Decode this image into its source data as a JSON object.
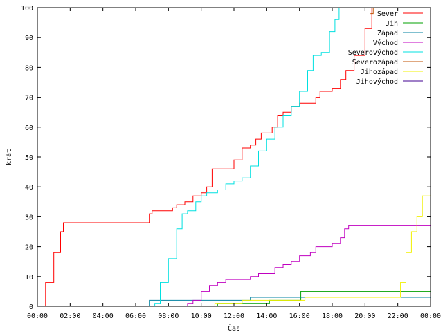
{
  "chart_data": {
    "type": "line",
    "xlabel": "Čas",
    "ylabel": "krát",
    "xlim": [
      "00:00",
      "24:00"
    ],
    "ylim": [
      0,
      100
    ],
    "x_ticks": [
      "00:00",
      "02:00",
      "04:00",
      "06:00",
      "08:00",
      "10:00",
      "12:00",
      "14:00",
      "16:00",
      "18:00",
      "20:00",
      "22:00",
      "00:00"
    ],
    "y_ticks": [
      0,
      10,
      20,
      30,
      40,
      50,
      60,
      70,
      80,
      90,
      100
    ],
    "grid": false,
    "legend_position": "top-right",
    "series": [
      {
        "name": "Sever",
        "color": "#ff0000",
        "points": [
          [
            "00:00",
            0
          ],
          [
            "00:30",
            8
          ],
          [
            "01:00",
            18
          ],
          [
            "01:25",
            25
          ],
          [
            "01:35",
            28
          ],
          [
            "06:40",
            28
          ],
          [
            "06:50",
            31
          ],
          [
            "07:00",
            32
          ],
          [
            "08:00",
            32
          ],
          [
            "08:15",
            33
          ],
          [
            "08:30",
            34
          ],
          [
            "09:00",
            35
          ],
          [
            "09:30",
            37
          ],
          [
            "10:00",
            38
          ],
          [
            "10:20",
            40
          ],
          [
            "10:40",
            46
          ],
          [
            "11:40",
            46
          ],
          [
            "12:00",
            49
          ],
          [
            "12:30",
            53
          ],
          [
            "13:00",
            54
          ],
          [
            "13:20",
            56
          ],
          [
            "13:40",
            58
          ],
          [
            "14:20",
            60
          ],
          [
            "14:40",
            64
          ],
          [
            "15:00",
            65
          ],
          [
            "15:30",
            67
          ],
          [
            "16:00",
            68
          ],
          [
            "16:45",
            68
          ],
          [
            "17:00",
            70
          ],
          [
            "17:15",
            72
          ],
          [
            "18:00",
            73
          ],
          [
            "18:30",
            76
          ],
          [
            "18:50",
            79
          ],
          [
            "19:20",
            84
          ],
          [
            "20:00",
            93
          ],
          [
            "20:25",
            100
          ]
        ]
      },
      {
        "name": "Jih",
        "color": "#00a000",
        "points": [
          [
            "10:50",
            0
          ],
          [
            "11:00",
            1
          ],
          [
            "14:00",
            1
          ],
          [
            "14:10",
            2
          ],
          [
            "16:00",
            2
          ],
          [
            "16:05",
            5
          ],
          [
            "24:00",
            5
          ]
        ]
      },
      {
        "name": "Západ",
        "color": "#0080a0",
        "points": [
          [
            "06:40",
            0
          ],
          [
            "06:50",
            2
          ],
          [
            "11:40",
            2
          ],
          [
            "11:50",
            2
          ],
          [
            "12:50",
            2
          ],
          [
            "13:00",
            3
          ],
          [
            "16:10",
            3
          ],
          [
            "16:20",
            3
          ],
          [
            "24:00",
            3
          ]
        ]
      },
      {
        "name": "Východ",
        "color": "#c000c0",
        "points": [
          [
            "09:00",
            0
          ],
          [
            "09:10",
            1
          ],
          [
            "09:30",
            2
          ],
          [
            "10:00",
            5
          ],
          [
            "10:30",
            7
          ],
          [
            "11:00",
            8
          ],
          [
            "11:30",
            9
          ],
          [
            "13:00",
            10
          ],
          [
            "13:30",
            11
          ],
          [
            "14:30",
            13
          ],
          [
            "15:00",
            14
          ],
          [
            "15:30",
            15
          ],
          [
            "16:00",
            17
          ],
          [
            "16:40",
            18
          ],
          [
            "17:00",
            20
          ],
          [
            "18:00",
            21
          ],
          [
            "18:30",
            23
          ],
          [
            "18:45",
            26
          ],
          [
            "19:00",
            27
          ],
          [
            "24:00",
            27
          ]
        ]
      },
      {
        "name": "Severovýchod",
        "color": "#00e0e0",
        "points": [
          [
            "06:50",
            0
          ],
          [
            "07:10",
            1
          ],
          [
            "07:30",
            8
          ],
          [
            "08:00",
            16
          ],
          [
            "08:30",
            26
          ],
          [
            "08:50",
            31
          ],
          [
            "09:10",
            32
          ],
          [
            "09:40",
            35
          ],
          [
            "10:00",
            37
          ],
          [
            "10:20",
            38
          ],
          [
            "11:00",
            39
          ],
          [
            "11:30",
            41
          ],
          [
            "12:00",
            42
          ],
          [
            "12:30",
            43
          ],
          [
            "13:00",
            47
          ],
          [
            "13:30",
            52
          ],
          [
            "14:00",
            56
          ],
          [
            "14:30",
            60
          ],
          [
            "15:00",
            64
          ],
          [
            "15:30",
            67
          ],
          [
            "16:00",
            72
          ],
          [
            "16:30",
            79
          ],
          [
            "16:50",
            84
          ],
          [
            "17:20",
            85
          ],
          [
            "17:50",
            92
          ],
          [
            "18:10",
            96
          ],
          [
            "18:25",
            100
          ]
        ]
      },
      {
        "name": "Severozápad",
        "color": "#c05000",
        "points": [
          [
            "20:20",
            98
          ],
          [
            "20:30",
            100
          ]
        ]
      },
      {
        "name": "Jihozápad",
        "color": "#f0f000",
        "points": [
          [
            "10:40",
            0
          ],
          [
            "10:50",
            1
          ],
          [
            "12:30",
            2
          ],
          [
            "16:00",
            2
          ],
          [
            "16:20",
            3
          ],
          [
            "21:50",
            3
          ],
          [
            "22:10",
            8
          ],
          [
            "22:30",
            18
          ],
          [
            "22:50",
            25
          ],
          [
            "23:10",
            30
          ],
          [
            "23:30",
            37
          ],
          [
            "24:00",
            44
          ]
        ]
      },
      {
        "name": "Jihovýchod",
        "color": "#400090",
        "points": []
      }
    ]
  }
}
